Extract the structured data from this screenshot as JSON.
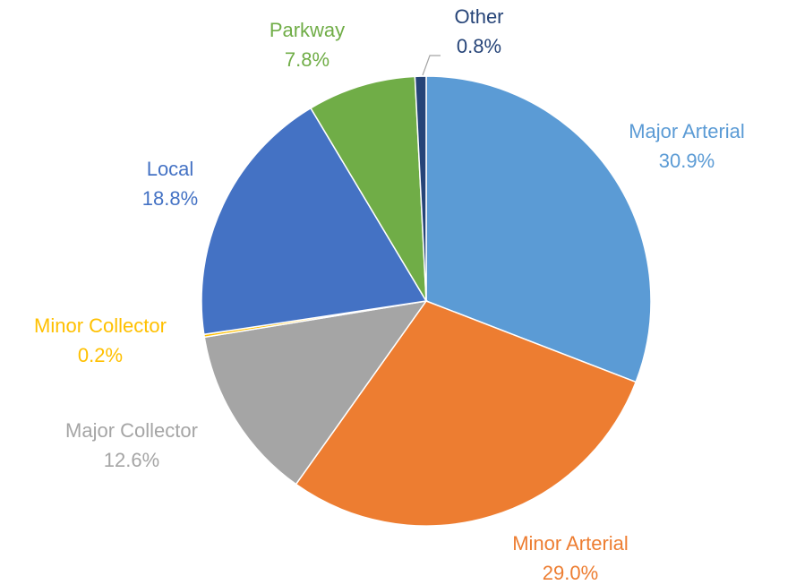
{
  "chart_data": {
    "type": "pie",
    "categories": [
      "Major Arterial",
      "Minor Arterial",
      "Major Collector",
      "Minor Collector",
      "Local",
      "Parkway",
      "Other"
    ],
    "values": [
      30.9,
      29.0,
      12.6,
      0.2,
      18.8,
      7.8,
      0.8
    ],
    "value_labels": [
      "30.9%",
      "29.0%",
      "12.6%",
      "0.2%",
      "18.8%",
      "7.8%",
      "0.8%"
    ],
    "colors": [
      "#5b9bd5",
      "#ed7d31",
      "#a5a5a5",
      "#ffc000",
      "#4472c4",
      "#70ad47",
      "#264478"
    ]
  }
}
